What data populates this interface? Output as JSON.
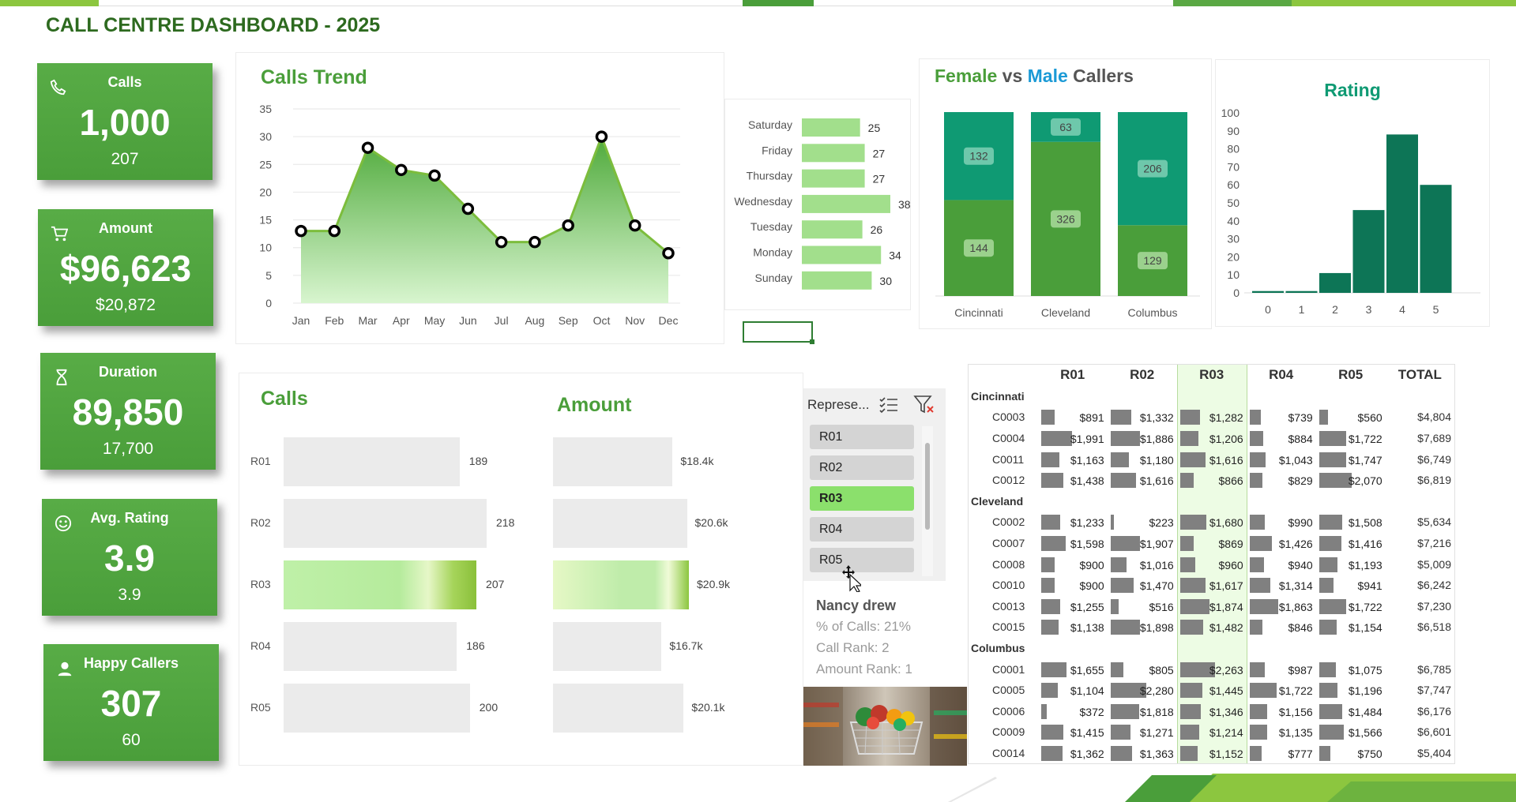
{
  "title": "CALL CENTRE DASHBOARD - 2025",
  "kpis": [
    {
      "label": "Calls",
      "value": "1,000",
      "sub": "207",
      "icon": "phone-icon"
    },
    {
      "label": "Amount",
      "value": "$96,623",
      "sub": "$20,872",
      "icon": "cart-icon"
    },
    {
      "label": "Duration",
      "value": "89,850",
      "sub": "17,700",
      "icon": "hourglass-icon"
    },
    {
      "label": "Avg. Rating",
      "value": "3.9",
      "sub": "3.9",
      "icon": "smiley-icon"
    },
    {
      "label": "Happy Callers",
      "value": "307",
      "sub": "60",
      "icon": "user-icon"
    }
  ],
  "trend": {
    "title": "Calls Trend",
    "chart_data": {
      "type": "area",
      "categories": [
        "Jan",
        "Feb",
        "Mar",
        "Apr",
        "May",
        "Jun",
        "Jul",
        "Aug",
        "Sep",
        "Oct",
        "Nov",
        "Dec"
      ],
      "values": [
        13,
        13,
        28,
        24,
        23,
        17,
        11,
        11,
        14,
        30,
        14,
        9
      ],
      "ylim": [
        0,
        35
      ],
      "yticks": [
        "0",
        "5",
        "10",
        "15",
        "20",
        "25",
        "30",
        "35"
      ]
    }
  },
  "weekday": {
    "chart_data": {
      "type": "bar",
      "categories": [
        "Saturday",
        "Friday",
        "Thursday",
        "Wednesday",
        "Tuesday",
        "Monday",
        "Sunday"
      ],
      "values": [
        25,
        27,
        27,
        38,
        26,
        34,
        30
      ]
    }
  },
  "gender": {
    "title_female": "Female",
    "title_vs": " vs ",
    "title_male": "Male",
    "title_rest": " Callers",
    "chart_data": {
      "type": "bar",
      "categories": [
        "Cincinnati",
        "Cleveland",
        "Columbus"
      ],
      "series": [
        {
          "name": "Female",
          "values": [
            144,
            326,
            129
          ]
        },
        {
          "name": "Male",
          "values": [
            132,
            63,
            206
          ]
        }
      ]
    },
    "colors": {
      "female": "#4a9e3a",
      "male": "#0f9a73"
    }
  },
  "rating": {
    "title": "Rating",
    "chart_data": {
      "type": "bar",
      "categories": [
        "0",
        "1",
        "2",
        "3",
        "4",
        "5"
      ],
      "values": [
        1,
        1,
        11,
        46,
        88,
        60
      ],
      "ylim": [
        0,
        100
      ],
      "yticks": [
        "0",
        "10",
        "20",
        "30",
        "40",
        "50",
        "60",
        "70",
        "80",
        "90",
        "100"
      ]
    }
  },
  "calls_panel": {
    "title": "Calls",
    "chart_data": {
      "type": "bar",
      "categories": [
        "R01",
        "R02",
        "R03",
        "R04",
        "R05"
      ],
      "values": [
        189,
        218,
        207,
        186,
        200
      ],
      "labels": [
        "189",
        "218",
        "207",
        "186",
        "200"
      ]
    }
  },
  "amount_panel": {
    "title": "Amount",
    "chart_data": {
      "type": "bar",
      "categories": [
        "R01",
        "R02",
        "R03",
        "R04",
        "R05"
      ],
      "values": [
        18.4,
        20.6,
        20.9,
        16.7,
        20.1
      ],
      "labels": [
        "$18.4k",
        "$20.6k",
        "$20.9k",
        "$16.7k",
        "$20.1k"
      ]
    }
  },
  "slicer": {
    "title": "Represe...",
    "items": [
      "R01",
      "R02",
      "R03",
      "R04",
      "R05"
    ],
    "selected": "R03"
  },
  "rep_info": {
    "name": "Nancy drew",
    "pct": "% of Calls: 21%",
    "call_rank": "Call Rank: 2",
    "amount_rank": "Amount Rank: 1"
  },
  "table": {
    "headers": [
      "R01",
      "R02",
      "R03",
      "R04",
      "R05",
      "TOTAL"
    ],
    "groups": [
      {
        "city": "Cincinnati",
        "rows": [
          {
            "id": "C0003",
            "vals": [
              891,
              1332,
              1282,
              739,
              560
            ],
            "labels": [
              "$891",
              "$1,332",
              "$1,282",
              "$739",
              "$560"
            ],
            "total": "$4,804"
          },
          {
            "id": "C0004",
            "vals": [
              1991,
              1886,
              1206,
              884,
              1722
            ],
            "labels": [
              "$1,991",
              "$1,886",
              "$1,206",
              "$884",
              "$1,722"
            ],
            "total": "$7,689"
          },
          {
            "id": "C0011",
            "vals": [
              1163,
              1180,
              1616,
              1043,
              1747
            ],
            "labels": [
              "$1,163",
              "$1,180",
              "$1,616",
              "$1,043",
              "$1,747"
            ],
            "total": "$6,749"
          },
          {
            "id": "C0012",
            "vals": [
              1438,
              1616,
              866,
              829,
              2070
            ],
            "labels": [
              "$1,438",
              "$1,616",
              "$866",
              "$829",
              "$2,070"
            ],
            "total": "$6,819"
          }
        ]
      },
      {
        "city": "Cleveland",
        "rows": [
          {
            "id": "C0002",
            "vals": [
              1233,
              223,
              1680,
              990,
              1508
            ],
            "labels": [
              "$1,233",
              "$223",
              "$1,680",
              "$990",
              "$1,508"
            ],
            "total": "$5,634"
          },
          {
            "id": "C0007",
            "vals": [
              1598,
              1907,
              869,
              1426,
              1416
            ],
            "labels": [
              "$1,598",
              "$1,907",
              "$869",
              "$1,426",
              "$1,416"
            ],
            "total": "$7,216"
          },
          {
            "id": "C0008",
            "vals": [
              900,
              1016,
              960,
              940,
              1193
            ],
            "labels": [
              "$900",
              "$1,016",
              "$960",
              "$940",
              "$1,193"
            ],
            "total": "$5,009"
          },
          {
            "id": "C0010",
            "vals": [
              900,
              1470,
              1617,
              1314,
              941
            ],
            "labels": [
              "$900",
              "$1,470",
              "$1,617",
              "$1,314",
              "$941"
            ],
            "total": "$6,242"
          },
          {
            "id": "C0013",
            "vals": [
              1255,
              516,
              1874,
              1863,
              1722
            ],
            "labels": [
              "$1,255",
              "$516",
              "$1,874",
              "$1,863",
              "$1,722"
            ],
            "total": "$7,230"
          },
          {
            "id": "C0015",
            "vals": [
              1138,
              1898,
              1482,
              846,
              1154
            ],
            "labels": [
              "$1,138",
              "$1,898",
              "$1,482",
              "$846",
              "$1,154"
            ],
            "total": "$6,518"
          }
        ]
      },
      {
        "city": "Columbus",
        "rows": [
          {
            "id": "C0001",
            "vals": [
              1655,
              805,
              2263,
              987,
              1075
            ],
            "labels": [
              "$1,655",
              "$805",
              "$2,263",
              "$987",
              "$1,075"
            ],
            "total": "$6,785"
          },
          {
            "id": "C0005",
            "vals": [
              1104,
              2280,
              1445,
              1722,
              1196
            ],
            "labels": [
              "$1,104",
              "$2,280",
              "$1,445",
              "$1,722",
              "$1,196"
            ],
            "total": "$7,747"
          },
          {
            "id": "C0006",
            "vals": [
              372,
              1818,
              1346,
              1156,
              1484
            ],
            "labels": [
              "$372",
              "$1,818",
              "$1,346",
              "$1,156",
              "$1,484"
            ],
            "total": "$6,176"
          },
          {
            "id": "C0009",
            "vals": [
              1415,
              1271,
              1214,
              1135,
              1566
            ],
            "labels": [
              "$1,415",
              "$1,271",
              "$1,214",
              "$1,135",
              "$1,566"
            ],
            "total": "$6,601"
          },
          {
            "id": "C0014",
            "vals": [
              1362,
              1363,
              1152,
              777,
              750
            ],
            "labels": [
              "$1,362",
              "$1,363",
              "$1,152",
              "$777",
              "$750"
            ],
            "total": "$5,404"
          }
        ]
      }
    ]
  },
  "colors": {
    "accent": "#4a9e3a",
    "title_green": "#2d6a1f",
    "teal": "#0f9a73",
    "dark_teal": "#0d7556"
  }
}
